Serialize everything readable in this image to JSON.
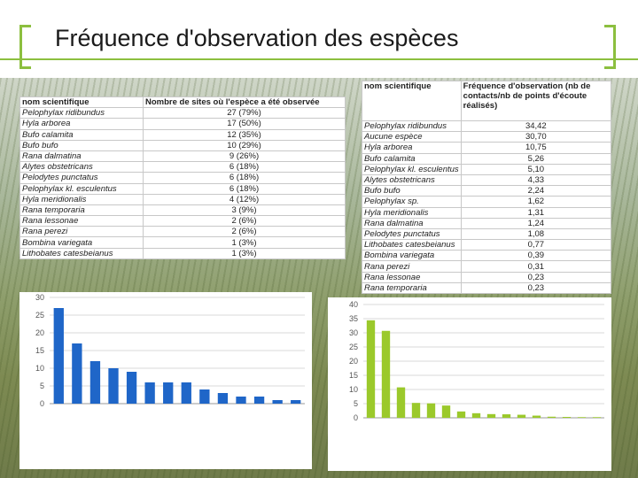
{
  "slide": {
    "title": "Fréquence d'observation des espèces"
  },
  "colors": {
    "accent": "#8cbf3f",
    "bar_left": "#1f66c8",
    "bar_right": "#9bc92b"
  },
  "table_left": {
    "headers": [
      "nom scientifique",
      "Nombre de sites où l'espèce a été observée"
    ],
    "rows": [
      [
        "Pelophylax ridibundus",
        "27 (79%)"
      ],
      [
        "Hyla arborea",
        "17 (50%)"
      ],
      [
        "Bufo calamita",
        "12 (35%)"
      ],
      [
        "Bufo bufo",
        "10 (29%)"
      ],
      [
        "Rana dalmatina",
        "9 (26%)"
      ],
      [
        "Alytes obstetricans",
        "6 (18%)"
      ],
      [
        "Pelodytes punctatus",
        "6 (18%)"
      ],
      [
        "Pelophylax kl. esculentus",
        "6 (18%)"
      ],
      [
        "Hyla meridionalis",
        "4 (12%)"
      ],
      [
        "Rana temporaria",
        "3 (9%)"
      ],
      [
        "Rana lessonae",
        "2 (6%)"
      ],
      [
        "Rana perezi",
        "2 (6%)"
      ],
      [
        "Bombina variegata",
        "1 (3%)"
      ],
      [
        "Lithobates catesbeianus",
        "1 (3%)"
      ]
    ]
  },
  "table_right": {
    "headers": [
      "nom scientifique",
      "Fréquence d'observation (nb de contacts/nb de points d'écoute réalisés)"
    ],
    "rows": [
      [
        "Pelophylax ridibundus",
        "34,42"
      ],
      [
        "Aucune espèce",
        "30,70"
      ],
      [
        "Hyla arborea",
        "10,75"
      ],
      [
        "Bufo calamita",
        "5,26"
      ],
      [
        "Pelophylax kl. esculentus",
        "5,10"
      ],
      [
        "Alytes obstetricans",
        "4,33"
      ],
      [
        "Bufo bufo",
        "2,24"
      ],
      [
        "Pelophylax sp.",
        "1,62"
      ],
      [
        "Hyla meridionalis",
        "1,31"
      ],
      [
        "Rana dalmatina",
        "1,24"
      ],
      [
        "Pelodytes punctatus",
        "1,08"
      ],
      [
        "Lithobates catesbeianus",
        "0,77"
      ],
      [
        "Bombina variegata",
        "0,39"
      ],
      [
        "Rana perezi",
        "0,31"
      ],
      [
        "Rana lessonae",
        "0,23"
      ],
      [
        "Rana temporaria",
        "0,23"
      ]
    ]
  },
  "chart_data": [
    {
      "type": "bar",
      "categories": [
        "Pelophylax ridibundus",
        "Hyla arborea",
        "Bufo calamita",
        "Bufo bufo",
        "Rana dalmatina",
        "Alytes obstetricans",
        "Pelodytes punctatus",
        "Pelophylax kl. esculentus",
        "Hyla meridionalis",
        "Rana temporaria",
        "Rana lessonae",
        "Rana perezi",
        "Bombina variegata",
        "Lithobates catesbeianus"
      ],
      "values": [
        27,
        17,
        12,
        10,
        9,
        6,
        6,
        6,
        4,
        3,
        2,
        2,
        1,
        1
      ],
      "yticks": [
        "0",
        "5",
        "10",
        "15",
        "20",
        "25",
        "30"
      ],
      "ylim": [
        0,
        30
      ],
      "grid": true
    },
    {
      "type": "bar",
      "categories": [
        "Pelophylax ridibundus",
        "Aucune espèce",
        "Hyla arborea",
        "Bufo calamita",
        "Pelophylax kl. esculentus",
        "Alytes obstetricans",
        "Bufo bufo",
        "Pelophylax sp.",
        "Hyla meridionalis",
        "Rana dalmatina",
        "Pelodytes punctatus",
        "Lithobates catesbeianus",
        "Bombina variegata",
        "Rana perezi",
        "Rana lessonae",
        "Rana temporaria"
      ],
      "values": [
        34.42,
        30.7,
        10.75,
        5.26,
        5.1,
        4.33,
        2.24,
        1.62,
        1.31,
        1.24,
        1.08,
        0.77,
        0.39,
        0.31,
        0.23,
        0.23
      ],
      "yticks": [
        "0",
        "5",
        "10",
        "15",
        "20",
        "25",
        "30",
        "35",
        "40"
      ],
      "ylim": [
        0,
        40
      ],
      "grid": true
    }
  ]
}
